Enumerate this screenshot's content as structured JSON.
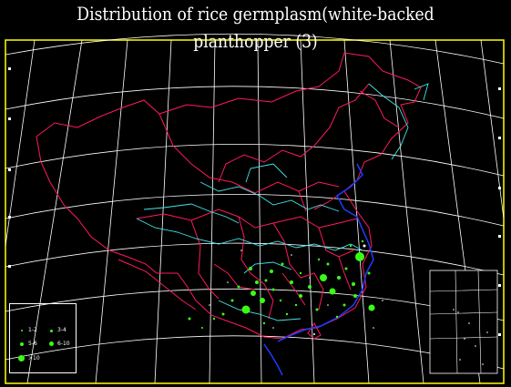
{
  "title": "Distribution  of rice  germplasm(white-backed planthopper (3)",
  "colors": {
    "background": "#000000",
    "frame": "#ffff00",
    "graticule": "#ffffff",
    "province_borders": "#ff1a5a",
    "rivers": "#44e6e6",
    "coastline": "#1f3cff",
    "points": "#39ff14"
  },
  "legend": {
    "items": [
      {
        "label": "1-2",
        "size": 1
      },
      {
        "label": "3-4",
        "size": 2
      },
      {
        "label": "5-6",
        "size": 3
      },
      {
        "label": "6-10",
        "size": 4
      },
      {
        "label": ">10",
        "size": 5
      }
    ]
  }
}
